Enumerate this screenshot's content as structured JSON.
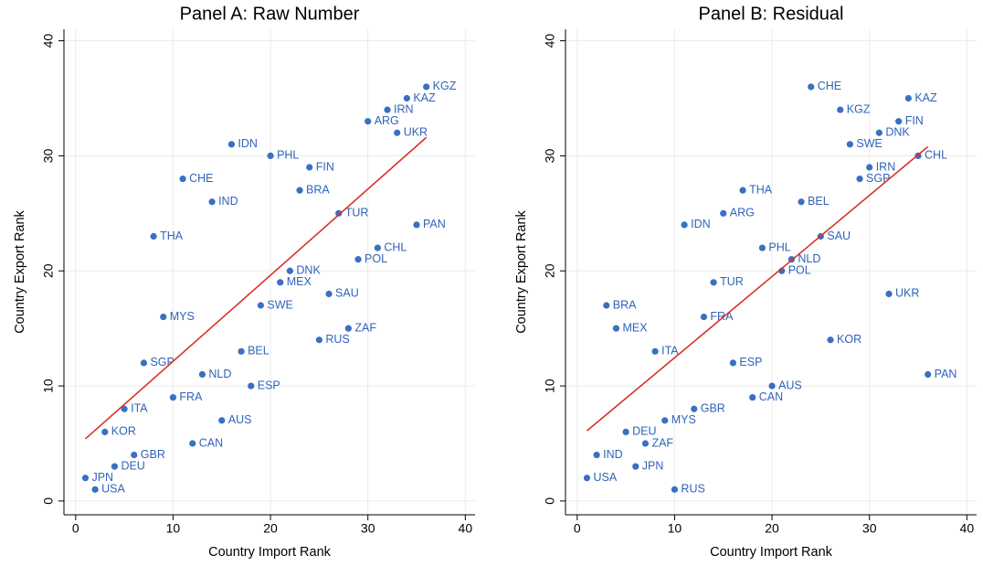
{
  "chart_data": [
    {
      "type": "scatter",
      "title": "Panel A: Raw Number",
      "xlabel": "Country Import Rank",
      "ylabel": "Country Export Rank",
      "xlim": [
        -1.2,
        41
      ],
      "ylim": [
        -1.2,
        41
      ],
      "xticks": [
        0,
        10,
        20,
        30,
        40
      ],
      "yticks": [
        0,
        10,
        20,
        30,
        40
      ],
      "grid": true,
      "color": "#3a6fc2",
      "labels": [
        "KGZ",
        "KAZ",
        "IRN",
        "ARG",
        "UKR",
        "IDN",
        "PHL",
        "FIN",
        "CHE",
        "BRA",
        "IND",
        "TUR",
        "PAN",
        "THA",
        "CHL",
        "POL",
        "DNK",
        "MEX",
        "SAU",
        "SWE",
        "MYS",
        "ZAF",
        "RUS",
        "BEL",
        "SGP",
        "NLD",
        "ESP",
        "FRA",
        "ITA",
        "AUS",
        "KOR",
        "CAN",
        "GBR",
        "DEU",
        "JPN",
        "USA"
      ],
      "x": [
        36,
        34,
        32,
        30,
        33,
        16,
        20,
        24,
        11,
        23,
        14,
        27,
        35,
        8,
        31,
        29,
        22,
        21,
        26,
        19,
        9,
        28,
        25,
        17,
        7,
        13,
        18,
        10,
        5,
        15,
        3,
        12,
        6,
        4,
        1,
        2
      ],
      "y": [
        36,
        35,
        34,
        33,
        32,
        31,
        30,
        29,
        28,
        27,
        26,
        25,
        24,
        23,
        22,
        21,
        20,
        19,
        18,
        17,
        16,
        15,
        14,
        13,
        12,
        11,
        10,
        9,
        8,
        7,
        6,
        5,
        4,
        3,
        2,
        1
      ],
      "fit_line": {
        "x": [
          1,
          36
        ],
        "y": [
          5.4,
          31.6
        ],
        "color": "#d9312b"
      }
    },
    {
      "type": "scatter",
      "title": "Panel B: Residual",
      "xlabel": "Country Import Rank",
      "ylabel": "Country Export Rank",
      "xlim": [
        -1.2,
        41
      ],
      "ylim": [
        -1.2,
        41
      ],
      "xticks": [
        0,
        10,
        20,
        30,
        40
      ],
      "yticks": [
        0,
        10,
        20,
        30,
        40
      ],
      "grid": true,
      "color": "#3a6fc2",
      "labels": [
        "CHE",
        "KAZ",
        "KGZ",
        "FIN",
        "DNK",
        "SWE",
        "CHL",
        "IRN",
        "SGP",
        "THA",
        "BEL",
        "ARG",
        "IDN",
        "SAU",
        "PHL",
        "NLD",
        "POL",
        "TUR",
        "UKR",
        "BRA",
        "FRA",
        "MEX",
        "KOR",
        "ITA",
        "ESP",
        "PAN",
        "AUS",
        "CAN",
        "GBR",
        "MYS",
        "DEU",
        "ZAF",
        "IND",
        "JPN",
        "USA",
        "RUS"
      ],
      "x": [
        24,
        34,
        27,
        33,
        31,
        28,
        35,
        30,
        29,
        17,
        23,
        15,
        11,
        25,
        19,
        22,
        21,
        14,
        32,
        3,
        13,
        4,
        26,
        8,
        16,
        36,
        20,
        18,
        12,
        9,
        5,
        7,
        2,
        6,
        1,
        10
      ],
      "y": [
        36,
        35,
        34,
        33,
        32,
        31,
        30,
        29,
        28,
        27,
        26,
        25,
        24,
        23,
        22,
        21,
        20,
        19,
        18,
        17,
        16,
        15,
        14,
        13,
        12,
        11,
        10,
        9,
        8,
        7,
        6,
        5,
        4,
        3,
        2,
        1
      ],
      "fit_line": {
        "x": [
          1,
          36
        ],
        "y": [
          6.1,
          30.8
        ],
        "color": "#d9312b"
      }
    }
  ]
}
